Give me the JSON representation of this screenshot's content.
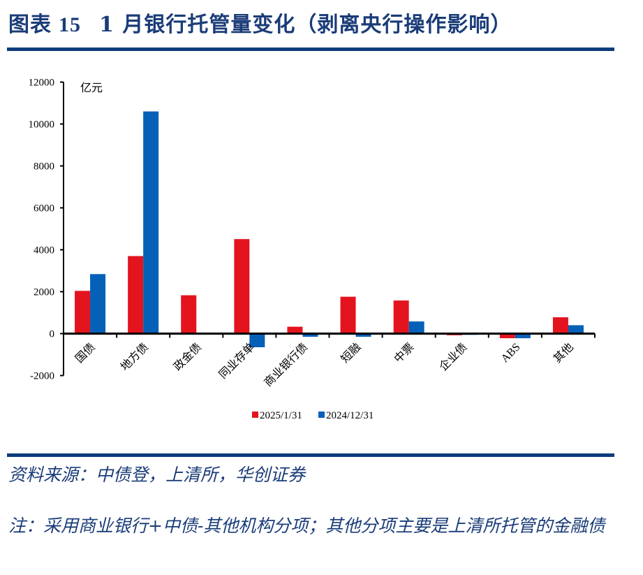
{
  "header": {
    "figure_label": "图表",
    "figure_number": "15",
    "title": "1 月银行托管量变化（剥离央行操作影响）"
  },
  "chart_data": {
    "type": "bar",
    "title": "1 月银行托管量变化（剥离央行操作影响）",
    "unit_label": "亿元",
    "xlabel": "",
    "ylabel": "亿元",
    "ylim": [
      -2000,
      12000
    ],
    "yticks": [
      -2000,
      0,
      2000,
      4000,
      6000,
      8000,
      10000,
      12000
    ],
    "grid": false,
    "legend_position": "bottom",
    "categories": [
      "国债",
      "地方债",
      "政金债",
      "同业存单",
      "商业银行债",
      "短融",
      "中票",
      "企业债",
      "ABS",
      "其他"
    ],
    "series": [
      {
        "name": "2025/1/31",
        "color": "#E3141E",
        "values": [
          2040,
          3700,
          1830,
          4510,
          330,
          1760,
          1580,
          -80,
          -220,
          780
        ]
      },
      {
        "name": "2024/12/31",
        "color": "#0560B8",
        "values": [
          2840,
          10600,
          0,
          -650,
          -150,
          -150,
          580,
          -60,
          -220,
          400
        ]
      }
    ]
  },
  "footer": {
    "source": "资料来源：中债登，上清所，华创证券",
    "note": "注：采用商业银行+中债-其他机构分项；其他分项主要是上清所托管的金融债"
  }
}
